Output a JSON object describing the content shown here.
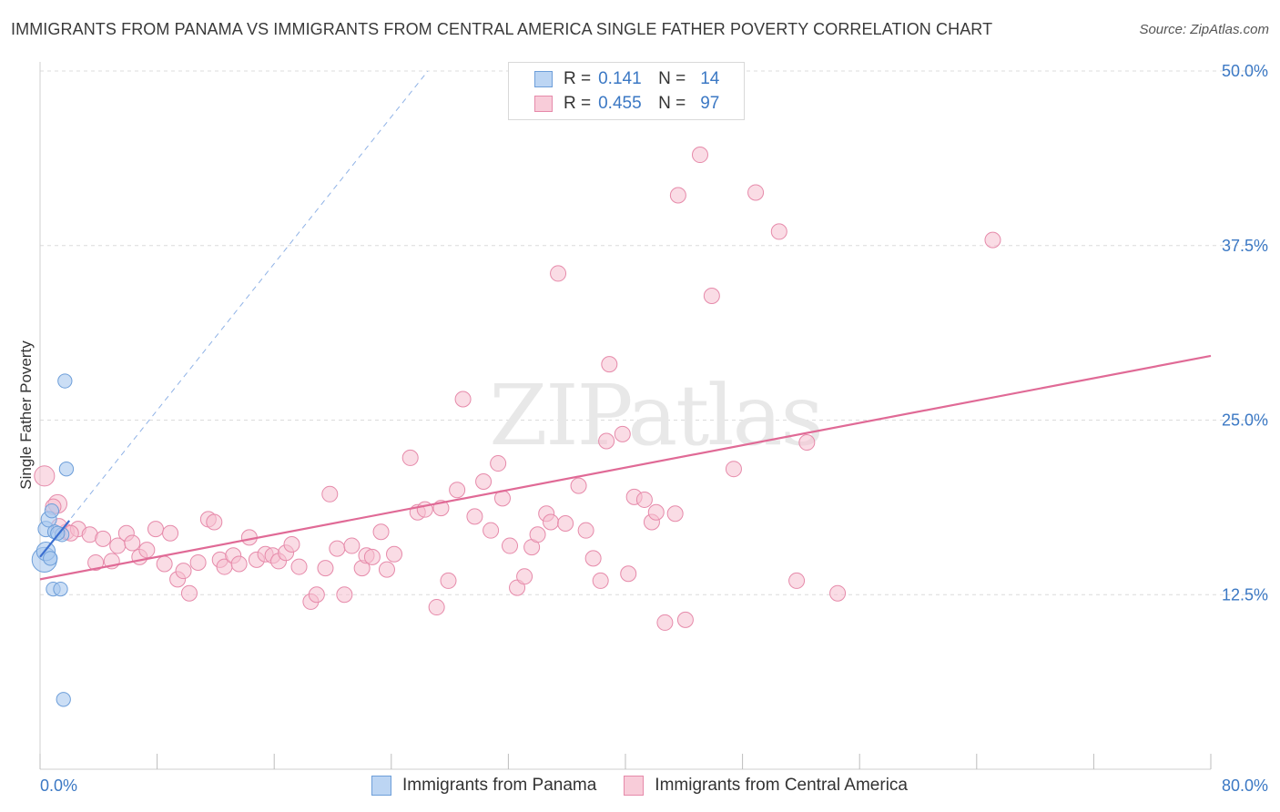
{
  "title": "IMMIGRANTS FROM PANAMA VS IMMIGRANTS FROM CENTRAL AMERICA SINGLE FATHER POVERTY CORRELATION CHART",
  "source": "Source: ZipAtlas.com",
  "colors": {
    "panama_fill": "#a9c8ef",
    "panama_stroke": "#6d9ed9",
    "panama_line": "#3b6fd0",
    "central_fill": "#f6bfd0",
    "central_stroke": "#e68aaa",
    "central_line": "#e06a96",
    "tick_text": "#3b78c4"
  },
  "legend": {
    "rows": [
      {
        "r_label": "R =",
        "r_value": "0.141",
        "n_label": "N =",
        "n_value": "14"
      },
      {
        "r_label": "R =",
        "r_value": "0.455",
        "n_label": "N =",
        "n_value": "97"
      }
    ]
  },
  "bottom_legend": {
    "items": [
      "Immigrants from Panama",
      "Immigrants from Central America"
    ]
  },
  "watermark": "ZIPatlas",
  "chart_data": {
    "type": "scatter",
    "title": "IMMIGRANTS FROM PANAMA VS IMMIGRANTS FROM CENTRAL AMERICA SINGLE FATHER POVERTY CORRELATION CHART",
    "xlabel": "",
    "ylabel": "Single Father Poverty",
    "xlim": [
      0,
      80
    ],
    "ylim": [
      0,
      50
    ],
    "x_tick_labels": [
      "0.0%",
      "80.0%"
    ],
    "y_ticks": [
      12.5,
      25.0,
      37.5,
      50.0
    ],
    "y_tick_labels": [
      "12.5%",
      "25.0%",
      "37.5%",
      "50.0%"
    ],
    "series": [
      {
        "name": "Immigrants from Panama",
        "r": 0.141,
        "n": 14,
        "trend": {
          "x0": 0.0,
          "y0": 15.2,
          "x1": 2.0,
          "y1": 17.8,
          "dash_x1": 26.5,
          "dash_y1": 50.0
        },
        "points": [
          [
            0.3,
            15.0,
            1.6
          ],
          [
            0.4,
            15.6,
            1.2
          ],
          [
            0.4,
            17.2,
            1.0
          ],
          [
            0.6,
            17.9,
            1.0
          ],
          [
            0.8,
            18.5,
            0.9
          ],
          [
            1.0,
            17.0,
            0.9
          ],
          [
            1.5,
            16.8,
            0.9
          ],
          [
            0.9,
            12.9,
            0.9
          ],
          [
            1.4,
            12.9,
            0.9
          ],
          [
            1.7,
            27.8,
            0.9
          ],
          [
            1.8,
            21.5,
            0.9
          ],
          [
            1.6,
            5.0,
            0.9
          ],
          [
            0.7,
            15.1,
            0.9
          ],
          [
            1.2,
            16.9,
            0.9
          ]
        ]
      },
      {
        "name": "Immigrants from Central America",
        "r": 0.455,
        "n": 97,
        "trend": {
          "x0": 0.0,
          "y0": 13.6,
          "x1": 80.0,
          "y1": 29.6
        },
        "points": [
          [
            0.3,
            21.0,
            1.3
          ],
          [
            1.2,
            19.0,
            1.2
          ],
          [
            1.8,
            17.0,
            1.0
          ],
          [
            2.6,
            17.2,
            1.0
          ],
          [
            3.4,
            16.8,
            1.0
          ],
          [
            3.8,
            14.8,
            1.0
          ],
          [
            4.3,
            16.5,
            1.0
          ],
          [
            4.9,
            14.9,
            1.0
          ],
          [
            5.3,
            16.0,
            1.0
          ],
          [
            5.9,
            16.9,
            1.0
          ],
          [
            6.3,
            16.2,
            1.0
          ],
          [
            6.8,
            15.2,
            1.0
          ],
          [
            7.3,
            15.7,
            1.0
          ],
          [
            7.9,
            17.2,
            1.0
          ],
          [
            8.5,
            14.7,
            1.0
          ],
          [
            8.9,
            16.9,
            1.0
          ],
          [
            9.4,
            13.6,
            1.0
          ],
          [
            9.8,
            14.2,
            1.0
          ],
          [
            10.2,
            12.6,
            1.0
          ],
          [
            10.8,
            14.8,
            1.0
          ],
          [
            11.5,
            17.9,
            1.0
          ],
          [
            11.9,
            17.7,
            1.0
          ],
          [
            12.3,
            15.0,
            1.0
          ],
          [
            12.6,
            14.5,
            1.0
          ],
          [
            13.2,
            15.3,
            1.0
          ],
          [
            13.6,
            14.7,
            1.0
          ],
          [
            14.3,
            16.6,
            1.0
          ],
          [
            14.8,
            15.0,
            1.0
          ],
          [
            15.4,
            15.4,
            1.0
          ],
          [
            15.9,
            15.3,
            1.0
          ],
          [
            16.3,
            14.9,
            1.0
          ],
          [
            16.8,
            15.5,
            1.0
          ],
          [
            17.2,
            16.1,
            1.0
          ],
          [
            17.7,
            14.5,
            1.0
          ],
          [
            18.5,
            12.0,
            1.0
          ],
          [
            18.9,
            12.5,
            1.0
          ],
          [
            19.5,
            14.4,
            1.0
          ],
          [
            19.8,
            19.7,
            1.0
          ],
          [
            20.3,
            15.8,
            1.0
          ],
          [
            20.8,
            12.5,
            1.0
          ],
          [
            21.3,
            16.0,
            1.0
          ],
          [
            22.0,
            14.4,
            1.0
          ],
          [
            22.3,
            15.3,
            1.0
          ],
          [
            22.7,
            15.2,
            1.0
          ],
          [
            23.3,
            17.0,
            1.0
          ],
          [
            23.7,
            14.3,
            1.0
          ],
          [
            24.2,
            15.4,
            1.0
          ],
          [
            25.3,
            22.3,
            1.0
          ],
          [
            25.8,
            18.4,
            1.0
          ],
          [
            26.3,
            18.6,
            1.0
          ],
          [
            27.4,
            18.7,
            1.0
          ],
          [
            27.1,
            11.6,
            1.0
          ],
          [
            27.9,
            13.5,
            1.0
          ],
          [
            28.5,
            20.0,
            1.0
          ],
          [
            28.9,
            26.5,
            1.0
          ],
          [
            29.7,
            18.1,
            1.0
          ],
          [
            30.3,
            20.6,
            1.0
          ],
          [
            30.8,
            17.1,
            1.0
          ],
          [
            31.3,
            21.9,
            1.0
          ],
          [
            31.6,
            19.4,
            1.0
          ],
          [
            32.1,
            16.0,
            1.0
          ],
          [
            32.6,
            13.0,
            1.0
          ],
          [
            33.1,
            13.8,
            1.0
          ],
          [
            33.6,
            15.9,
            1.0
          ],
          [
            34.0,
            16.8,
            1.0
          ],
          [
            34.6,
            18.3,
            1.0
          ],
          [
            34.9,
            17.7,
            1.0
          ],
          [
            35.4,
            35.5,
            1.0
          ],
          [
            35.9,
            17.6,
            1.0
          ],
          [
            36.8,
            20.3,
            1.0
          ],
          [
            37.3,
            17.1,
            1.0
          ],
          [
            37.8,
            15.1,
            1.0
          ],
          [
            38.3,
            13.5,
            1.0
          ],
          [
            38.7,
            23.5,
            1.0
          ],
          [
            38.9,
            29.0,
            1.0
          ],
          [
            39.8,
            24.0,
            1.0
          ],
          [
            40.2,
            14.0,
            1.0
          ],
          [
            40.6,
            19.5,
            1.0
          ],
          [
            41.3,
            19.3,
            1.0
          ],
          [
            41.8,
            17.7,
            1.0
          ],
          [
            42.1,
            18.4,
            1.0
          ],
          [
            42.7,
            10.5,
            1.0
          ],
          [
            43.4,
            18.3,
            1.0
          ],
          [
            43.6,
            41.1,
            1.0
          ],
          [
            44.1,
            10.7,
            1.0
          ],
          [
            45.1,
            44.0,
            1.0
          ],
          [
            45.9,
            33.9,
            1.0
          ],
          [
            47.4,
            21.5,
            1.0
          ],
          [
            48.9,
            41.3,
            1.0
          ],
          [
            50.5,
            38.5,
            1.0
          ],
          [
            51.7,
            13.5,
            1.0
          ],
          [
            52.4,
            23.4,
            1.0
          ],
          [
            54.5,
            12.6,
            1.0
          ],
          [
            65.1,
            37.9,
            1.0
          ],
          [
            1.3,
            17.4,
            1.0
          ],
          [
            2.1,
            16.9,
            1.0
          ],
          [
            0.9,
            18.8,
            1.0
          ]
        ]
      }
    ]
  }
}
